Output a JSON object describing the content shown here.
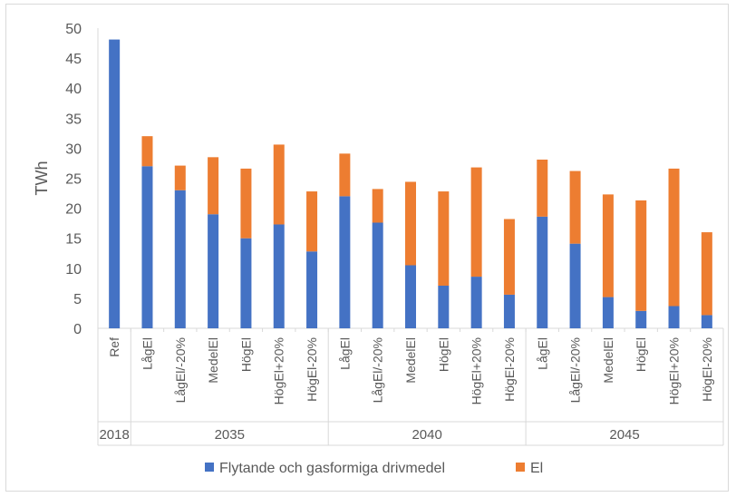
{
  "chart_data": {
    "type": "bar",
    "stacked": true,
    "ylabel": "TWh",
    "ylim": [
      0,
      50
    ],
    "yticks": [
      "0",
      "5",
      "10",
      "15",
      "20",
      "25",
      "30",
      "35",
      "40",
      "45",
      "50"
    ],
    "grid": false,
    "legend_position": "bottom",
    "categories": [
      "Ref",
      "LågEl",
      "LågEl/-20%",
      "MedelEl",
      "HögEl",
      "HögEl+20%",
      "HögEl-20%",
      "LågEl",
      "LågEl/-20%",
      "MedelEl",
      "HögEl",
      "HögEl+20%",
      "HögEl-20%",
      "LågEl",
      "LågEl/-20%",
      "MedelEl",
      "HögEl",
      "HögEl+20%",
      "HögEl-20%"
    ],
    "groups": [
      {
        "label": "2018",
        "count": 1
      },
      {
        "label": "2035",
        "count": 6
      },
      {
        "label": "2040",
        "count": 6
      },
      {
        "label": "2045",
        "count": 6
      }
    ],
    "series": [
      {
        "name": "Flytande och gasformiga drivmedel",
        "color": "#4472c4",
        "values": [
          48.1,
          27.0,
          23.0,
          19.0,
          15.0,
          17.3,
          12.8,
          22.0,
          17.6,
          10.5,
          7.1,
          8.6,
          5.6,
          18.6,
          14.1,
          5.2,
          2.9,
          3.7,
          2.2
        ]
      },
      {
        "name": "El",
        "color": "#ed7d31",
        "values": [
          0,
          5.0,
          4.1,
          9.5,
          11.6,
          13.3,
          10.0,
          7.1,
          5.6,
          13.9,
          15.7,
          18.2,
          12.6,
          9.5,
          12.1,
          17.1,
          18.4,
          22.9,
          13.8
        ]
      }
    ]
  }
}
